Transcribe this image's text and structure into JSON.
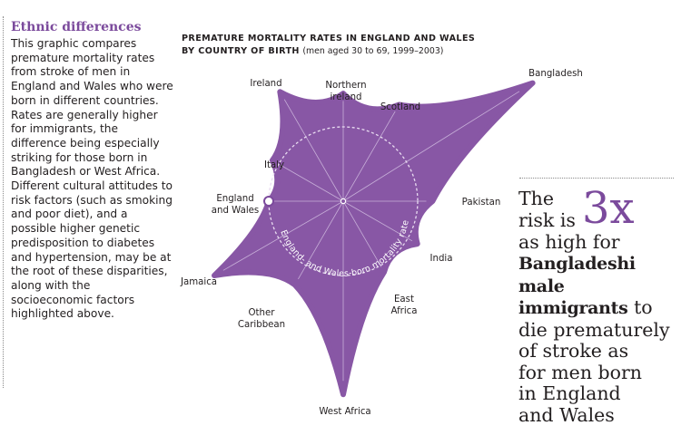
{
  "sidebar": {
    "heading": "Ethnic differences",
    "body": "This graphic compares premature mortality rates from stroke of men in England and Wales who were born in different countries. Rates are generally higher for immigrants, the difference being especially striking for those born in Bangladesh or West Africa. Different cultural attitudes to risk factors (such as smoking and poor diet), and a possible higher genetic predisposition to diabetes and hypertension, may be at the root of these disparities, along with the socioeconomic factors highlighted above."
  },
  "callout": {
    "line1": "The",
    "big": "3x",
    "line2": "risk is",
    "line3": "as high for",
    "bold1": "Bangladeshi male",
    "bold2": "immigrants",
    "line4": " to",
    "line5": "die prematurely",
    "line6": "of stroke as",
    "line7": "for men born",
    "line8": "in England",
    "line9": "and Wales"
  },
  "chart_data": {
    "type": "radar",
    "title": "PREMATURE MORTALITY RATES IN ENGLAND AND WALES",
    "subtitle_bold": "BY COUNTRY OF BIRTH",
    "subtitle": "(men aged 30 to 69, 1999–2003)",
    "reference_label": "England- and Wales-born mortality rate",
    "reference_value": 1.0,
    "categories": [
      "Northern ireland",
      "Scotland",
      "Bangladesh",
      "Pakistan",
      "India",
      "East Africa",
      "West Africa",
      "Other Caribbean",
      "Jamaica",
      "England and Wales",
      "Italy",
      "Ireland"
    ],
    "values": [
      1.45,
      1.5,
      3.0,
      1.2,
      1.15,
      1.1,
      2.6,
      1.3,
      2.0,
      1.0,
      1.1,
      1.7
    ],
    "highlighted_category": "England and Wales",
    "colors": {
      "fill": "#8857a5",
      "ring": "#e9dcf1",
      "accent": "#7b4a9c"
    }
  }
}
